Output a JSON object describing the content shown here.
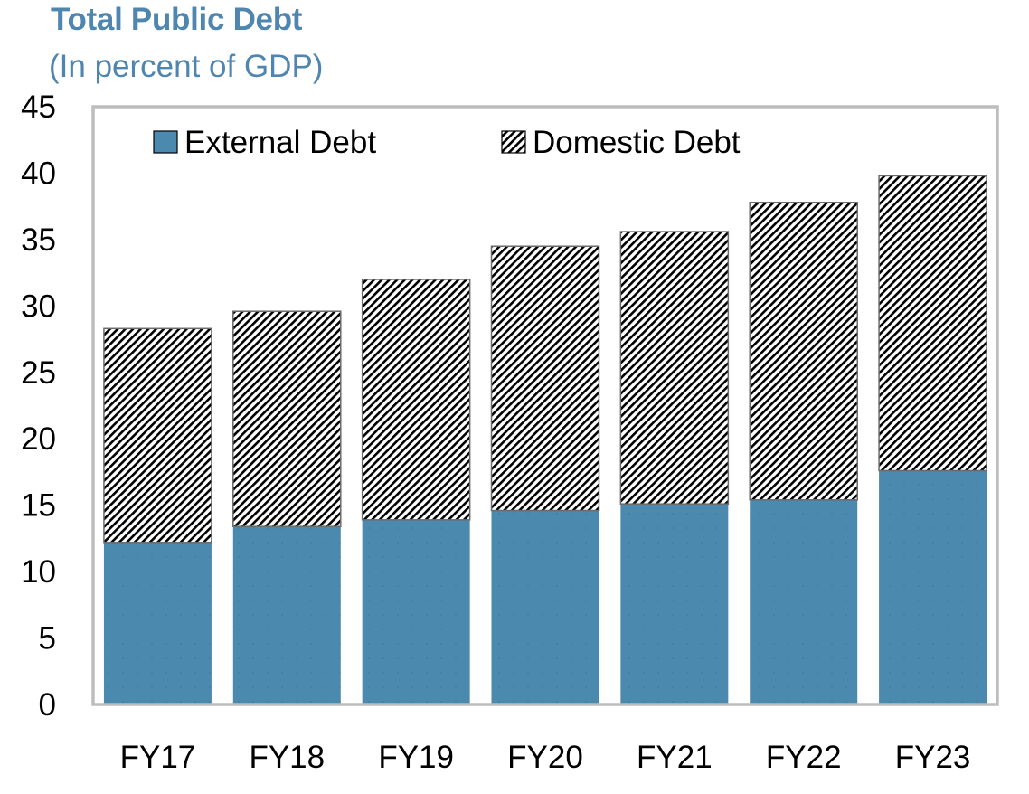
{
  "colors": {
    "title": "#4f86b0",
    "external": "#4b8aae",
    "frame": "#bdbdbd",
    "hatch": "#000000"
  },
  "chart_data": {
    "type": "bar",
    "stacked": true,
    "title": "Total Public Debt",
    "subtitle": "(In percent of GDP)",
    "xlabel": "",
    "ylabel": "",
    "categories": [
      "FY17",
      "FY18",
      "FY19",
      "FY20",
      "FY21",
      "FY22",
      "FY23"
    ],
    "series": [
      {
        "name": "External Debt",
        "pattern": "solid",
        "values": [
          12.2,
          13.4,
          13.9,
          14.6,
          15.1,
          15.4,
          17.6
        ]
      },
      {
        "name": "Domestic Debt",
        "pattern": "hatched",
        "values": [
          16.1,
          16.2,
          18.1,
          19.9,
          20.5,
          22.4,
          22.2
        ]
      }
    ],
    "ylim": [
      0,
      45
    ],
    "yticks": [
      0,
      5,
      10,
      15,
      20,
      25,
      30,
      35,
      40,
      45
    ],
    "grid": false,
    "legend_position": "top"
  }
}
